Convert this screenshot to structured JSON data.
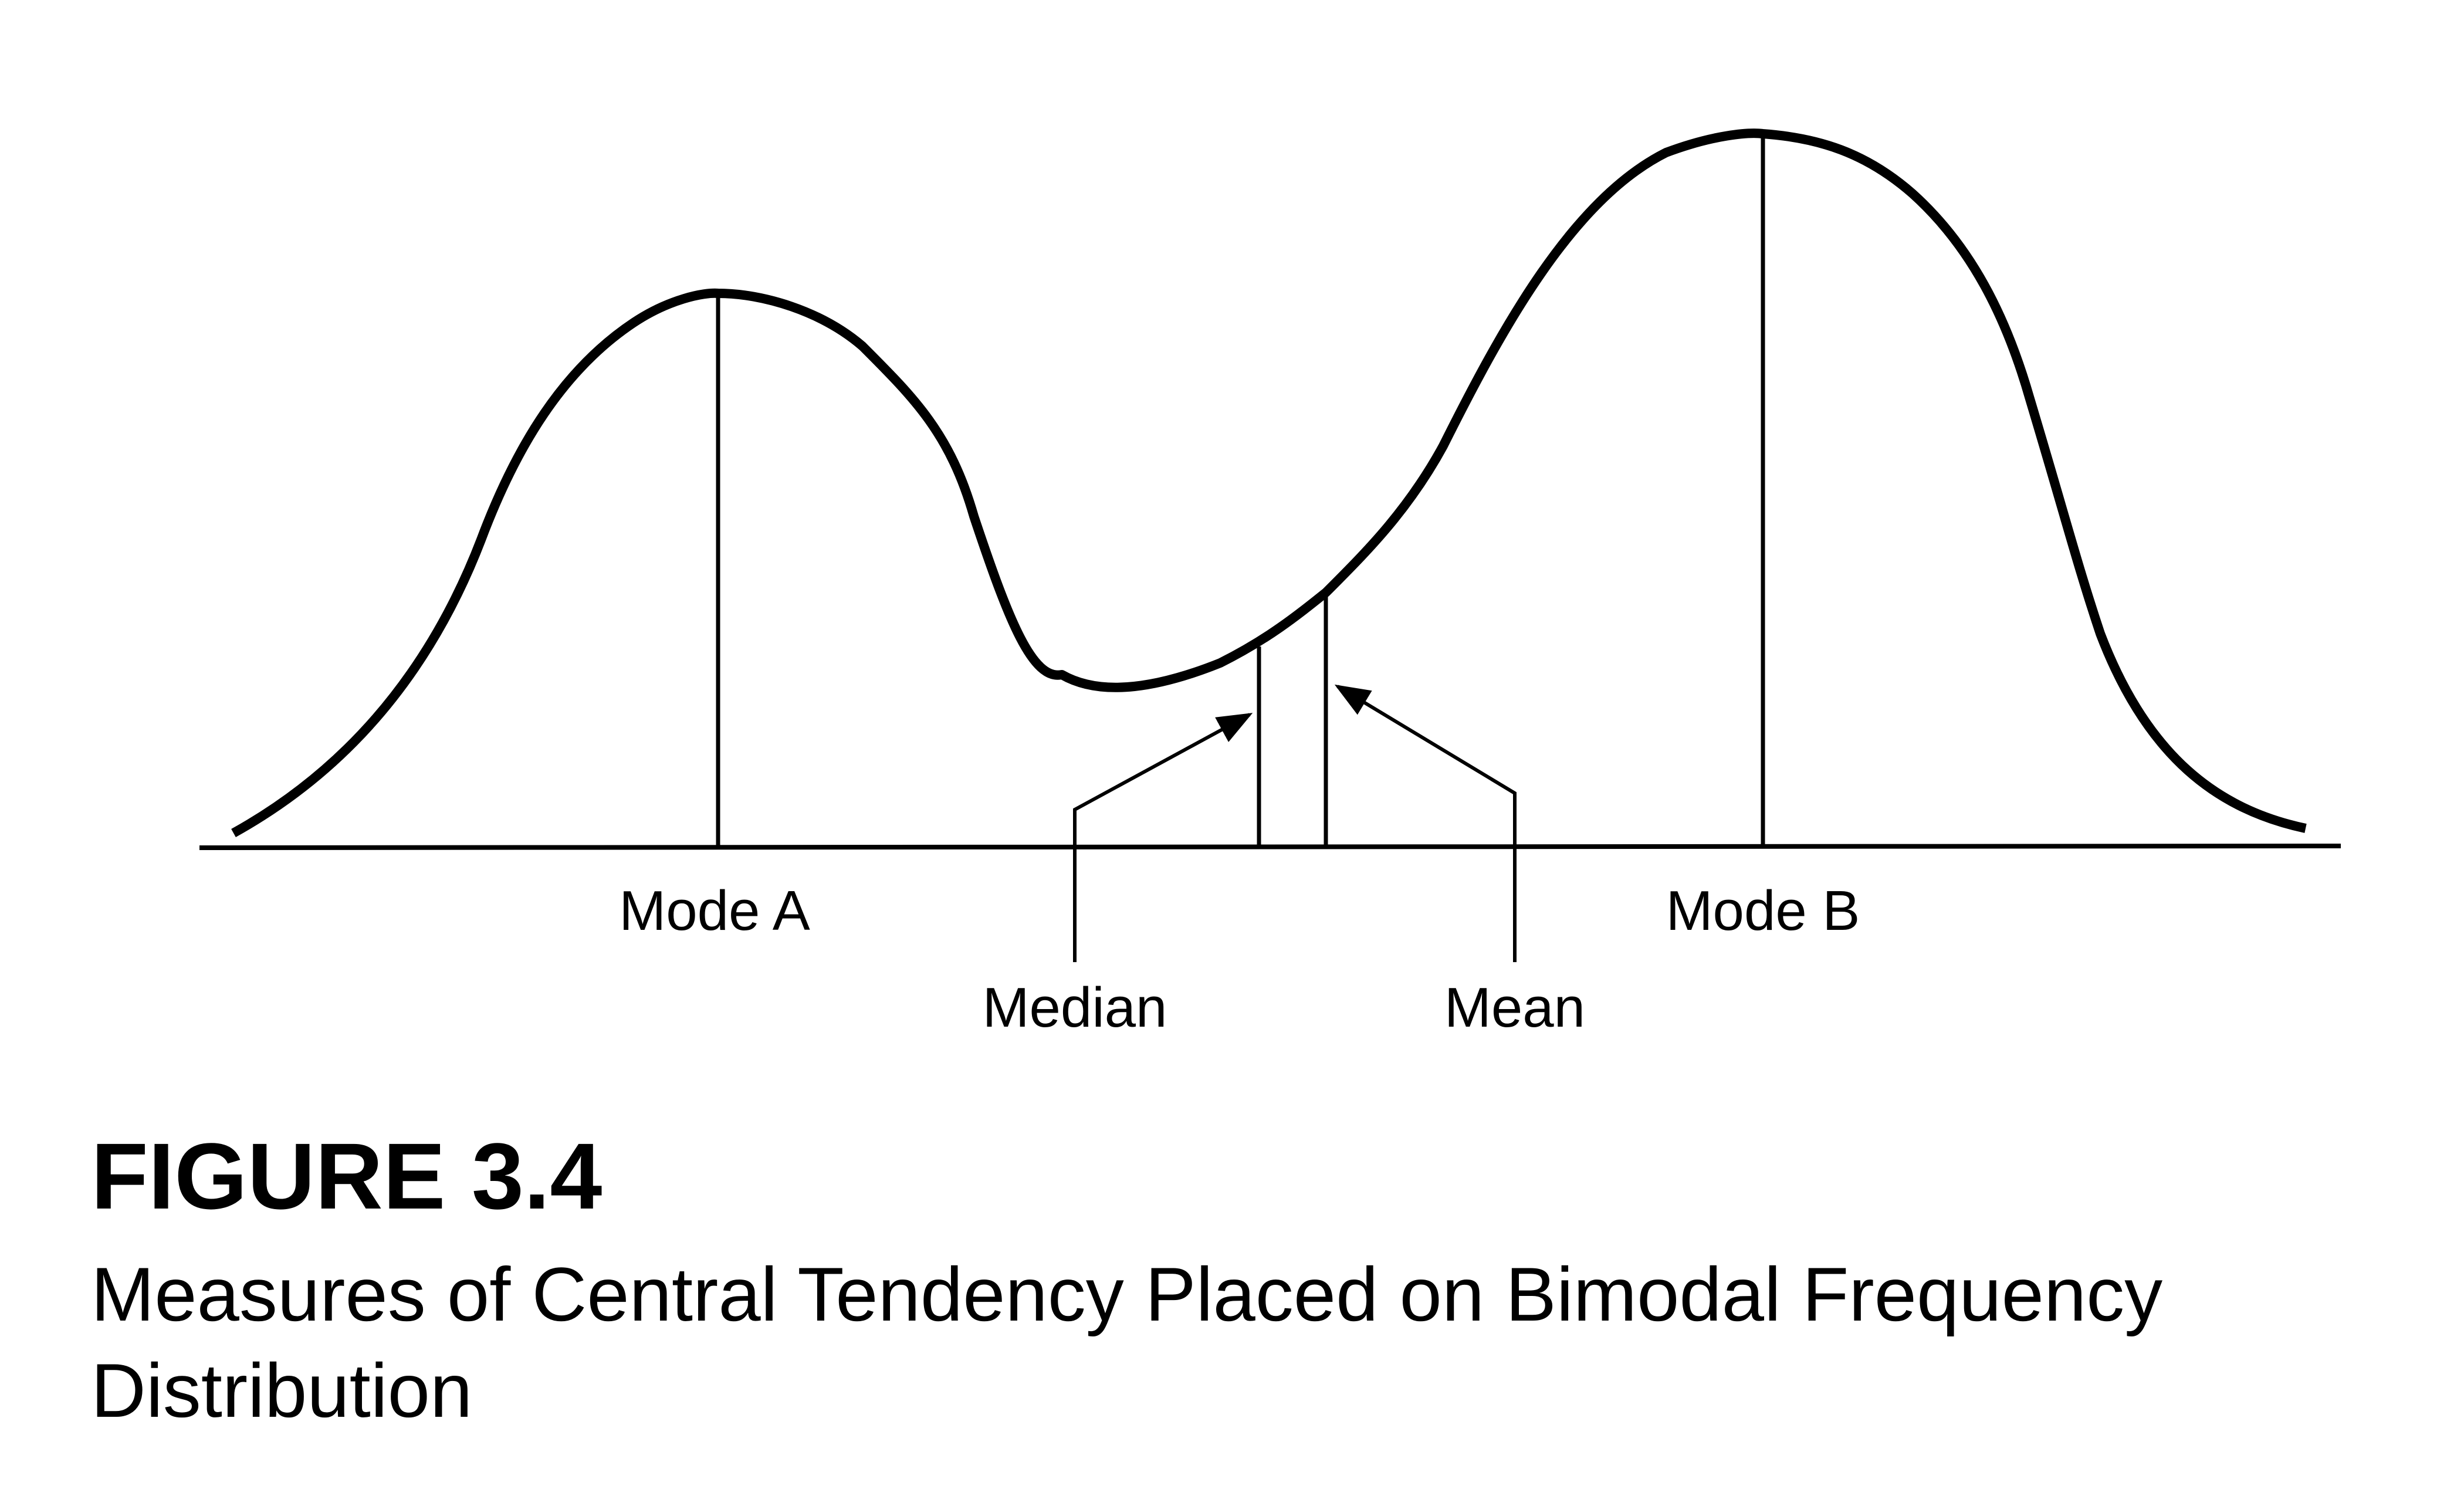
{
  "figure": {
    "number": "FIGURE 3.4",
    "title": "Measures of Central Tendency Placed on Bimodal Frequency Distribution"
  },
  "labels": {
    "mode_a": "Mode A",
    "mode_b": "Mode B",
    "median": "Median",
    "mean": "Mean"
  },
  "colors": {
    "ink": "#000000",
    "background": "#ffffff"
  }
}
